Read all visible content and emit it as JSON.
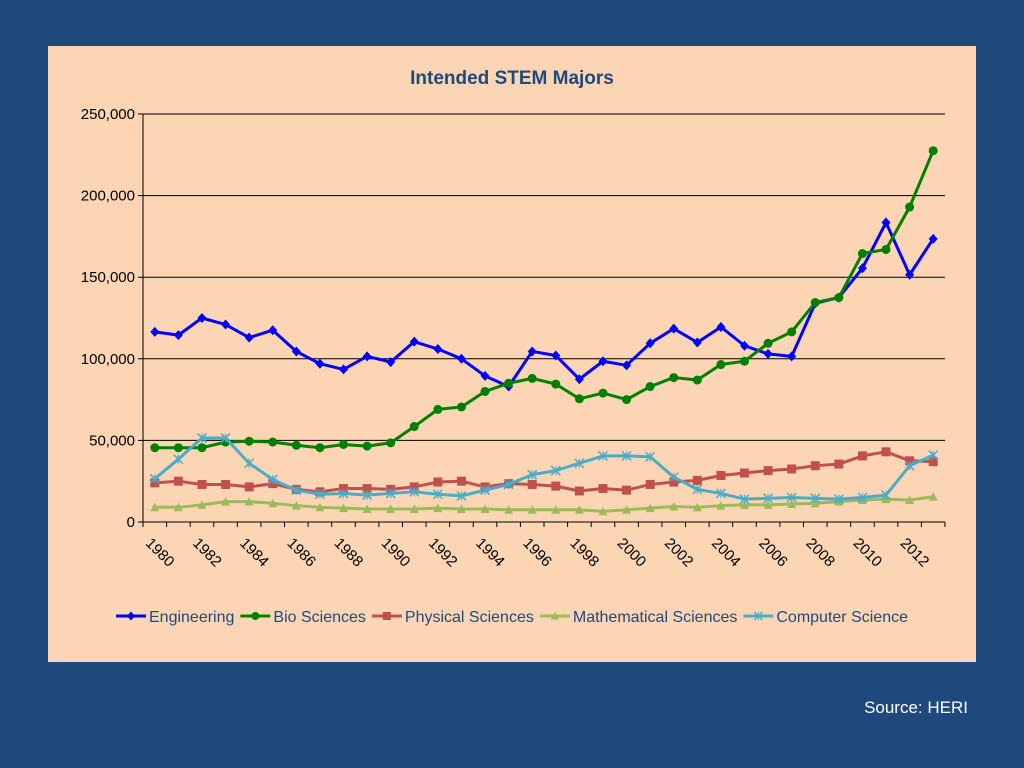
{
  "source": "Source: HERI",
  "chart_data": {
    "type": "line",
    "title": "Intended STEM Majors",
    "xlabel": "",
    "ylabel": "",
    "x": [
      1980,
      1981,
      1982,
      1983,
      1984,
      1985,
      1986,
      1987,
      1988,
      1989,
      1990,
      1991,
      1992,
      1993,
      1994,
      1995,
      1996,
      1997,
      1998,
      1999,
      2000,
      2001,
      2002,
      2003,
      2004,
      2005,
      2006,
      2007,
      2008,
      2009,
      2010,
      2011,
      2012,
      2013
    ],
    "xticks": [
      "1980",
      "1982",
      "1984",
      "1986",
      "1988",
      "1990",
      "1992",
      "1994",
      "1996",
      "1998",
      "2000",
      "2002",
      "2004",
      "2006",
      "2008",
      "2010",
      "2012"
    ],
    "ylim": [
      0,
      250000
    ],
    "yticks": [
      0,
      50000,
      100000,
      150000,
      200000,
      250000
    ],
    "ytick_labels": [
      "0",
      "50,000",
      "100,000",
      "150,000",
      "200,000",
      "250,000"
    ],
    "grid": "horizontal",
    "legend": "bottom",
    "series": [
      {
        "name": "Engineering",
        "color": "#0000ff",
        "marker": "diamond",
        "values": [
          116500,
          114500,
          125000,
          121000,
          113000,
          117500,
          104500,
          97000,
          93500,
          101500,
          98000,
          110500,
          106000,
          100000,
          89500,
          83000,
          104500,
          102000,
          87500,
          98500,
          96000,
          109500,
          118500,
          110000,
          119500,
          108000,
          103000,
          101500,
          134000,
          137500,
          155500,
          183500,
          151500,
          173500
        ]
      },
      {
        "name": "Bio Sciences",
        "color": "#008000",
        "marker": "circle",
        "values": [
          45500,
          45500,
          45500,
          49000,
          49500,
          49000,
          47000,
          45500,
          47500,
          46500,
          48500,
          58500,
          69000,
          70500,
          80000,
          85000,
          88000,
          84500,
          75500,
          79000,
          75000,
          83000,
          88500,
          87000,
          96500,
          98500,
          109500,
          116500,
          134500,
          137500,
          164500,
          167000,
          193000,
          227500
        ]
      },
      {
        "name": "Physical Sciences",
        "color": "#c0504d",
        "marker": "square",
        "values": [
          24000,
          25000,
          23000,
          23000,
          21500,
          23500,
          20000,
          18500,
          20500,
          20500,
          20000,
          21500,
          24500,
          25000,
          21500,
          23500,
          23000,
          22000,
          19000,
          20500,
          19500,
          23000,
          24500,
          25500,
          28500,
          30000,
          31500,
          32500,
          34500,
          35500,
          40500,
          43000,
          37500,
          37000
        ]
      },
      {
        "name": "Mathematical Sciences",
        "color": "#9bbb59",
        "marker": "triangle",
        "values": [
          9000,
          9000,
          10500,
          12500,
          12500,
          11500,
          10000,
          9000,
          8500,
          8000,
          8000,
          8000,
          8500,
          8000,
          8000,
          7500,
          7500,
          7500,
          7500,
          6500,
          7500,
          8500,
          9500,
          9000,
          10000,
          10500,
          10500,
          11000,
          11500,
          12500,
          13500,
          14000,
          13500,
          15500
        ]
      },
      {
        "name": "Computer Science",
        "color": "#4bacc6",
        "marker": "x",
        "values": [
          26500,
          38500,
          51500,
          51500,
          36000,
          26000,
          19500,
          17000,
          17500,
          16500,
          17500,
          18500,
          17000,
          16000,
          19500,
          23000,
          29000,
          31500,
          36000,
          40500,
          40500,
          40000,
          27500,
          20000,
          17500,
          14000,
          14500,
          15000,
          14500,
          14000,
          15000,
          16500,
          34500,
          41000
        ]
      }
    ]
  }
}
